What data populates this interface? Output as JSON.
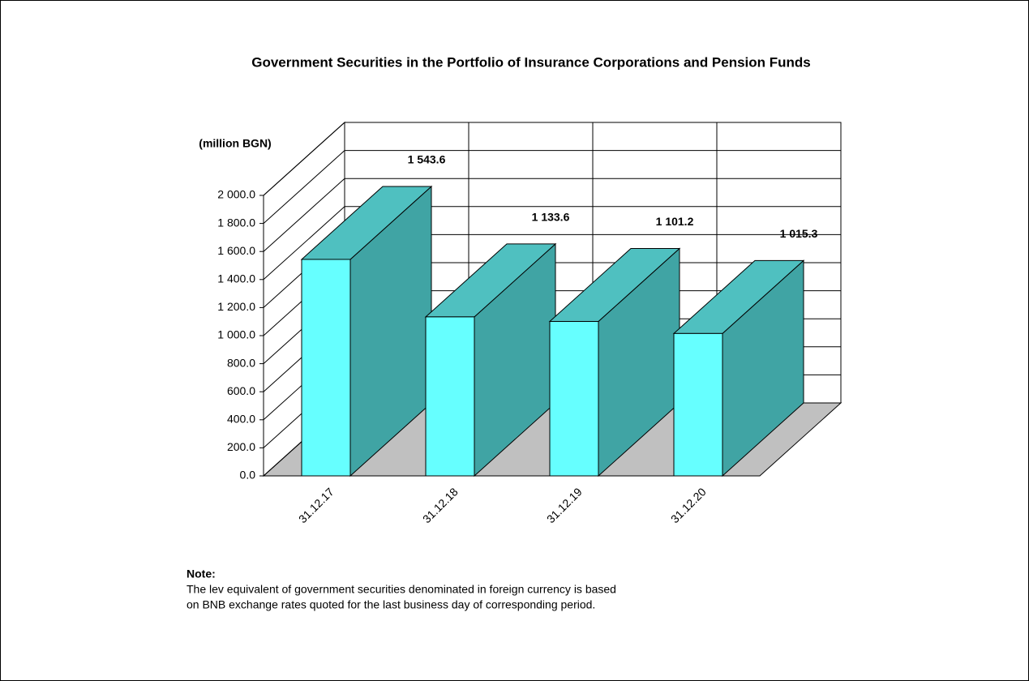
{
  "chart_data": {
    "type": "bar3d",
    "title": "Government Securities in the Portfolio of Insurance Corporations and Pension Funds",
    "y_label": "(million  BGN)",
    "categories": [
      "31.12.17",
      "31.12.18",
      "31.12.19",
      "31.12.20"
    ],
    "values": [
      1543.6,
      1133.6,
      1101.2,
      1015.3
    ],
    "value_labels": [
      "1 543.6",
      "1 133.6",
      "1 101.2",
      "1 015.3"
    ],
    "colors": {
      "front": "#66ffff",
      "side": "#40a4a4",
      "top": "#4fc0c0",
      "floor": "#c0c0c0"
    },
    "ylim": [
      0,
      2000
    ],
    "yticks": [
      {
        "value": 0,
        "label": "0.0"
      },
      {
        "value": 200,
        "label": "200.0"
      },
      {
        "value": 400,
        "label": "400.0"
      },
      {
        "value": 600,
        "label": "600.0"
      },
      {
        "value": 800,
        "label": "800.0"
      },
      {
        "value": 1000,
        "label": "1 000.0"
      },
      {
        "value": 1200,
        "label": "1 200.0"
      },
      {
        "value": 1400,
        "label": "1 400.0"
      },
      {
        "value": 1600,
        "label": "1 600.0"
      },
      {
        "value": 1800,
        "label": "1 800.0"
      },
      {
        "value": 2000,
        "label": "2 000.0"
      }
    ],
    "grid": true,
    "note_title": "Note:",
    "note_lines": [
      "The lev equivalent of government securities denominated in foreign currency is based",
      "on BNB exchange rates quoted for the last business day of corresponding period."
    ]
  }
}
